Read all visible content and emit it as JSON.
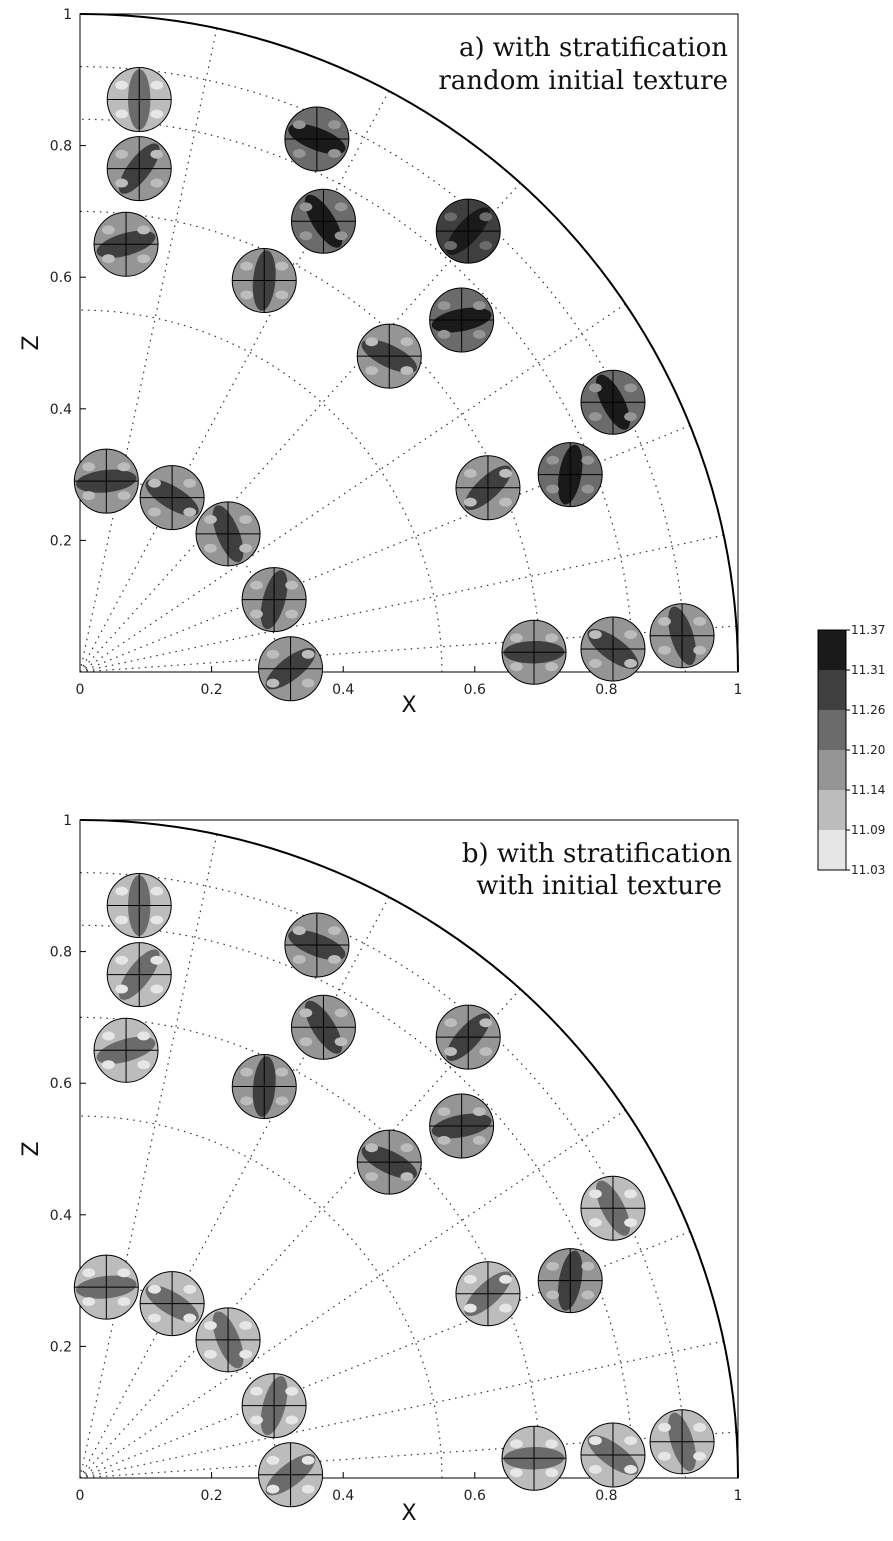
{
  "chart_data": {
    "type": "scatter",
    "description_note": "",
    "xlim": [
      0,
      1
    ],
    "ylim": [
      0,
      1
    ],
    "colorbar": {
      "levels": [
        "11.37",
        "11.31",
        "11.26",
        "11.20",
        "11.14",
        "11.09",
        "11.03"
      ],
      "colors": [
        "#1a1a1a",
        "#3f3f3f",
        "#6b6b6b",
        "#959595",
        "#bcbcbc",
        "#e6e6e6"
      ]
    },
    "panels": [
      {
        "title_lines": [
          "a) with stratification",
          "random initial texture"
        ],
        "xlabel": "X",
        "ylabel": "Z",
        "xticks": [
          "0",
          "0.2",
          "0.4",
          "0.6",
          "0.8",
          "1"
        ],
        "yticks": [
          "0.2",
          "0.4",
          "0.6",
          "0.8",
          "1"
        ],
        "points": [
          {
            "x": 0.09,
            "y": 0.87,
            "shade": 3
          },
          {
            "x": 0.09,
            "y": 0.765,
            "shade": 2
          },
          {
            "x": 0.07,
            "y": 0.65,
            "shade": 2
          },
          {
            "x": 0.36,
            "y": 0.81,
            "shade": 1
          },
          {
            "x": 0.37,
            "y": 0.685,
            "shade": 1
          },
          {
            "x": 0.28,
            "y": 0.595,
            "shade": 2
          },
          {
            "x": 0.59,
            "y": 0.67,
            "shade": 0
          },
          {
            "x": 0.58,
            "y": 0.535,
            "shade": 1
          },
          {
            "x": 0.47,
            "y": 0.48,
            "shade": 2
          },
          {
            "x": 0.81,
            "y": 0.41,
            "shade": 1
          },
          {
            "x": 0.745,
            "y": 0.3,
            "shade": 1
          },
          {
            "x": 0.62,
            "y": 0.28,
            "shade": 2
          },
          {
            "x": 0.04,
            "y": 0.29,
            "shade": 2
          },
          {
            "x": 0.14,
            "y": 0.265,
            "shade": 2
          },
          {
            "x": 0.225,
            "y": 0.21,
            "shade": 2
          },
          {
            "x": 0.295,
            "y": 0.11,
            "shade": 2
          },
          {
            "x": 0.32,
            "y": 0.005,
            "shade": 2
          },
          {
            "x": 0.69,
            "y": 0.03,
            "shade": 2
          },
          {
            "x": 0.81,
            "y": 0.035,
            "shade": 2
          },
          {
            "x": 0.915,
            "y": 0.055,
            "shade": 2
          }
        ]
      },
      {
        "title_lines": [
          "b) with stratification",
          "with initial texture"
        ],
        "xlabel": "X",
        "ylabel": "Z",
        "xticks": [
          "0",
          "0.2",
          "0.4",
          "0.6",
          "0.8",
          "1"
        ],
        "yticks": [
          "0.2",
          "0.4",
          "0.6",
          "0.8",
          "1"
        ],
        "points": [
          {
            "x": 0.09,
            "y": 0.87,
            "shade": 3
          },
          {
            "x": 0.09,
            "y": 0.765,
            "shade": 3
          },
          {
            "x": 0.07,
            "y": 0.65,
            "shade": 3
          },
          {
            "x": 0.36,
            "y": 0.81,
            "shade": 2
          },
          {
            "x": 0.37,
            "y": 0.685,
            "shade": 2
          },
          {
            "x": 0.28,
            "y": 0.595,
            "shade": 2
          },
          {
            "x": 0.59,
            "y": 0.67,
            "shade": 2
          },
          {
            "x": 0.58,
            "y": 0.535,
            "shade": 2
          },
          {
            "x": 0.47,
            "y": 0.48,
            "shade": 2
          },
          {
            "x": 0.81,
            "y": 0.41,
            "shade": 3
          },
          {
            "x": 0.745,
            "y": 0.3,
            "shade": 2
          },
          {
            "x": 0.62,
            "y": 0.28,
            "shade": 3
          },
          {
            "x": 0.04,
            "y": 0.29,
            "shade": 3
          },
          {
            "x": 0.14,
            "y": 0.265,
            "shade": 3
          },
          {
            "x": 0.225,
            "y": 0.21,
            "shade": 3
          },
          {
            "x": 0.295,
            "y": 0.11,
            "shade": 3
          },
          {
            "x": 0.32,
            "y": 0.005,
            "shade": 3
          },
          {
            "x": 0.69,
            "y": 0.03,
            "shade": 3
          },
          {
            "x": 0.81,
            "y": 0.035,
            "shade": 3
          },
          {
            "x": 0.915,
            "y": 0.055,
            "shade": 3
          }
        ]
      }
    ]
  }
}
